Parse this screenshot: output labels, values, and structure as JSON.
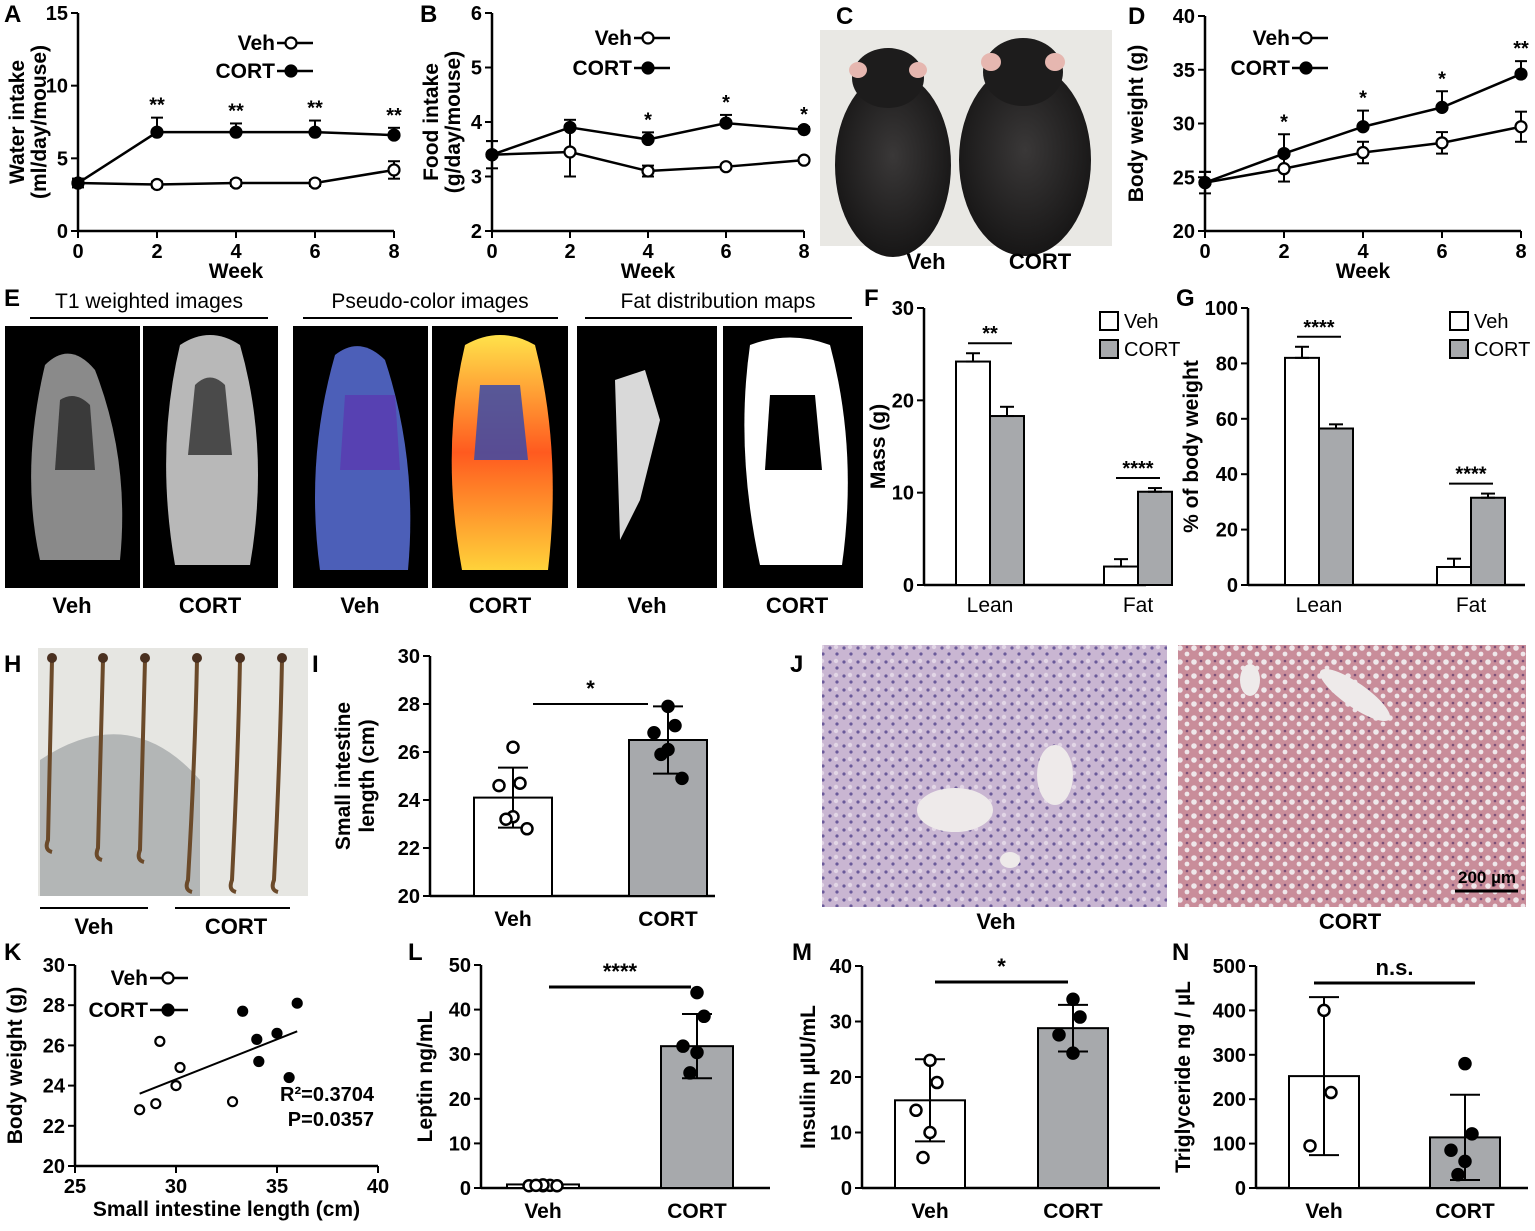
{
  "panels": {
    "A": "A",
    "B": "B",
    "C": "C",
    "D": "D",
    "E": "E",
    "F": "F",
    "G": "G",
    "H": "H",
    "I": "I",
    "J": "J",
    "K": "K",
    "L": "L",
    "M": "M",
    "N": "N"
  },
  "groups": {
    "veh": "Veh",
    "cort": "CORT"
  },
  "colors": {
    "bar_veh": "#ffffff",
    "bar_cort": "#a7a9ac",
    "ink": "#000000"
  },
  "photos": {
    "C": {
      "labels": [
        "Veh",
        "CORT"
      ]
    },
    "E": {
      "headers": [
        "T1 weighted images",
        "Pseudo-color images",
        "Fat distribution maps"
      ],
      "labels": [
        "Veh",
        "CORT",
        "Veh",
        "CORT",
        "Veh",
        "CORT"
      ]
    },
    "H": {
      "labels": [
        "Veh",
        "CORT"
      ]
    },
    "J": {
      "labels": [
        "Veh",
        "CORT"
      ],
      "scalebar": "200 µm"
    }
  },
  "chart_data": [
    {
      "id": "A",
      "type": "line",
      "xlabel": "Week",
      "ylabel": "Water intake",
      "ylabel2": "(ml/day/mouse)",
      "xlim": [
        0,
        8
      ],
      "ylim": [
        0,
        15
      ],
      "xticks": [
        "0",
        "2",
        "4",
        "6",
        "8"
      ],
      "yticks": [
        "0",
        "5",
        "10",
        "15"
      ],
      "x": [
        0,
        2,
        4,
        6,
        8
      ],
      "series": [
        {
          "name": "Veh",
          "values": [
            3.3,
            3.2,
            3.3,
            3.3,
            4.2
          ],
          "err": [
            0.3,
            0.2,
            0.2,
            0.2,
            0.6
          ]
        },
        {
          "name": "CORT",
          "values": [
            3.3,
            6.8,
            6.8,
            6.8,
            6.6
          ],
          "err": [
            0.3,
            1.0,
            0.6,
            0.8,
            0.5
          ]
        }
      ],
      "annotations": [
        "",
        "**",
        "**",
        "**",
        "**"
      ],
      "legend": "top-right"
    },
    {
      "id": "B",
      "type": "line",
      "xlabel": "Week",
      "ylabel": "Food intake",
      "ylabel2": "(g/day/mouse)",
      "xlim": [
        0,
        8
      ],
      "ylim": [
        2,
        6
      ],
      "xticks": [
        "0",
        "2",
        "4",
        "6",
        "8"
      ],
      "yticks": [
        "2",
        "3",
        "4",
        "5",
        "6"
      ],
      "x": [
        0,
        2,
        4,
        6,
        8
      ],
      "series": [
        {
          "name": "Veh",
          "values": [
            3.4,
            3.45,
            3.1,
            3.18,
            3.3
          ],
          "err": [
            0.25,
            0.45,
            0.1,
            0.04,
            0.04
          ]
        },
        {
          "name": "CORT",
          "values": [
            3.4,
            3.9,
            3.68,
            3.98,
            3.86
          ],
          "err": [
            0.25,
            0.14,
            0.13,
            0.15,
            0.05
          ]
        }
      ],
      "annotations": [
        "",
        "",
        "*",
        "*",
        "*"
      ],
      "legend": "top-right"
    },
    {
      "id": "D",
      "type": "line",
      "xlabel": "Week",
      "ylabel": "Body weight (g)",
      "ylabel2": "",
      "xlim": [
        0,
        8
      ],
      "ylim": [
        20,
        40
      ],
      "xticks": [
        "0",
        "2",
        "4",
        "6",
        "8"
      ],
      "yticks": [
        "20",
        "25",
        "30",
        "35",
        "40"
      ],
      "x": [
        0,
        2,
        4,
        6,
        8
      ],
      "series": [
        {
          "name": "Veh",
          "values": [
            24.5,
            25.8,
            27.3,
            28.2,
            29.7
          ],
          "err": [
            1.0,
            1.2,
            1.0,
            1.0,
            1.4
          ]
        },
        {
          "name": "CORT",
          "values": [
            24.5,
            27.2,
            29.7,
            31.5,
            34.6
          ],
          "err": [
            1.0,
            1.8,
            1.5,
            1.5,
            1.2
          ]
        }
      ],
      "annotations": [
        "",
        "*",
        "*",
        "*",
        "**"
      ],
      "legend": "top-left"
    },
    {
      "id": "F",
      "type": "bar",
      "xlabel": "",
      "ylabel": "Mass (g)",
      "categories": [
        "Lean",
        "Fat"
      ],
      "ylim": [
        0,
        30
      ],
      "yticks": [
        "0",
        "10",
        "20",
        "30"
      ],
      "series": [
        {
          "name": "Veh",
          "values": [
            24.2,
            2.0
          ],
          "err": [
            0.9,
            0.8
          ]
        },
        {
          "name": "CORT",
          "values": [
            18.3,
            10.1
          ],
          "err": [
            1.0,
            0.4
          ]
        }
      ],
      "annotations": [
        "**",
        "****"
      ],
      "legend": "top-right"
    },
    {
      "id": "G",
      "type": "bar",
      "xlabel": "",
      "ylabel": "% of body weight",
      "categories": [
        "Lean",
        "Fat"
      ],
      "ylim": [
        0,
        100
      ],
      "yticks": [
        "0",
        "20",
        "40",
        "60",
        "80",
        "100"
      ],
      "series": [
        {
          "name": "Veh",
          "values": [
            82,
            6.5
          ],
          "err": [
            4,
            3
          ]
        },
        {
          "name": "CORT",
          "values": [
            56.5,
            31.5
          ],
          "err": [
            1.5,
            1.5
          ]
        }
      ],
      "annotations": [
        "****",
        "****"
      ],
      "legend": "top-right"
    },
    {
      "id": "I",
      "type": "bar",
      "xlabel": "",
      "ylabel": "Small intestine",
      "ylabel2": "length (cm)",
      "categories": [
        "Veh",
        "CORT"
      ],
      "ylim": [
        20,
        30
      ],
      "yticks": [
        "20",
        "22",
        "24",
        "26",
        "28",
        "30"
      ],
      "values": [
        24.1,
        26.5
      ],
      "err": [
        1.25,
        1.4
      ],
      "points": [
        [
          26.2,
          24.7,
          24.6,
          23.3,
          23.2,
          22.8
        ],
        [
          27.9,
          27.1,
          26.8,
          26.1,
          25.9,
          24.9
        ]
      ],
      "annotation": "*"
    },
    {
      "id": "K",
      "type": "scatter",
      "xlabel": "Small intestine length (cm)",
      "ylabel": "Body weight (g)",
      "xlim": [
        25,
        40
      ],
      "ylim": [
        20,
        30
      ],
      "xticks": [
        "25",
        "30",
        "35",
        "40"
      ],
      "yticks": [
        "20",
        "22",
        "24",
        "26",
        "28",
        "30"
      ],
      "series": [
        {
          "name": "Veh",
          "x": [
            28.2,
            29.0,
            29.2,
            30.0,
            30.2,
            32.8
          ],
          "y": [
            22.8,
            23.1,
            26.2,
            24.0,
            24.9,
            23.2
          ]
        },
        {
          "name": "CORT",
          "x": [
            33.3,
            34.0,
            34.1,
            35.0,
            35.6,
            36.0
          ],
          "y": [
            27.7,
            26.3,
            25.2,
            26.6,
            24.4,
            28.1
          ]
        }
      ],
      "fit": {
        "x": [
          28.2,
          36.0
        ],
        "y": [
          23.6,
          26.7
        ]
      },
      "stats": [
        "R²=0.3704",
        "P=0.0357"
      ],
      "legend": "top-left"
    },
    {
      "id": "L",
      "type": "bar",
      "xlabel": "",
      "ylabel": "Leptin  ng/mL",
      "categories": [
        "Veh",
        "CORT"
      ],
      "ylim": [
        0,
        50
      ],
      "yticks": [
        "0",
        "10",
        "20",
        "30",
        "40",
        "50"
      ],
      "values": [
        0.8,
        31.8
      ],
      "err": [
        0.3,
        7.2
      ],
      "points": [
        [
          0.5,
          0.6,
          0.5,
          0.7,
          0.6,
          0.5
        ],
        [
          43.8,
          38.5,
          31.8,
          30.4,
          25.8
        ]
      ],
      "annotation": "****"
    },
    {
      "id": "M",
      "type": "bar",
      "xlabel": "",
      "ylabel": "Insulin  µIU/mL",
      "categories": [
        "Veh",
        "CORT"
      ],
      "ylim": [
        0,
        40
      ],
      "yticks": [
        "0",
        "10",
        "20",
        "30",
        "40"
      ],
      "values": [
        15.8,
        28.8
      ],
      "err": [
        7.4,
        4.2
      ],
      "points": [
        [
          23.0,
          19.0,
          14.0,
          10.0,
          5.5
        ],
        [
          34.0,
          30.8,
          27.6,
          24.3
        ]
      ],
      "annotation": "*"
    },
    {
      "id": "N",
      "type": "bar",
      "xlabel": "",
      "ylabel": "Triglyceride ng / µL",
      "categories": [
        "Veh",
        "CORT"
      ],
      "ylim": [
        0,
        500
      ],
      "yticks": [
        "0",
        "100",
        "200",
        "300",
        "400",
        "500"
      ],
      "values": [
        252,
        114
      ],
      "err": [
        178,
        96
      ],
      "points": [
        [
          400,
          215,
          95
        ],
        [
          280,
          122,
          85,
          60,
          30
        ]
      ],
      "annotation": "n.s."
    }
  ]
}
